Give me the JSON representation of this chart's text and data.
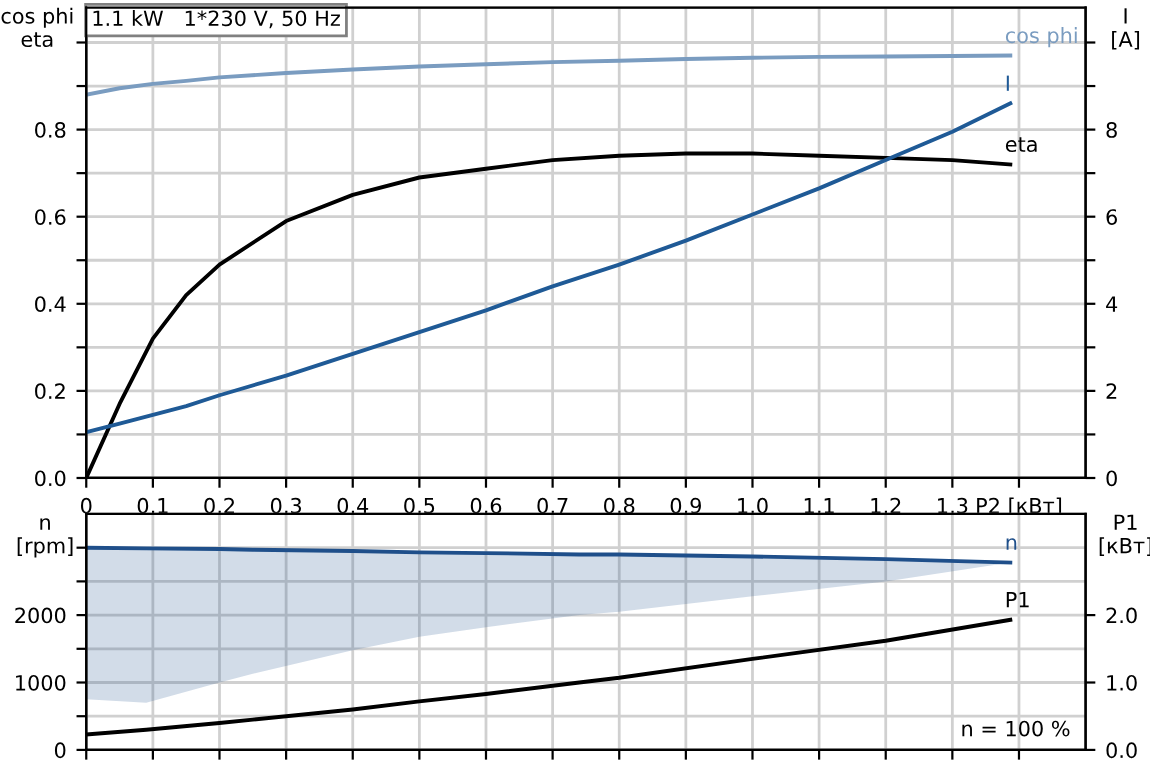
{
  "chart_data": [
    {
      "type": "line",
      "title": "1.1 kW   1*230 V, 50 Hz",
      "ylabel": "cos phi\neta",
      "y2label": "I\n[A]",
      "x": [
        0,
        0.05,
        0.1,
        0.15,
        0.2,
        0.3,
        0.4,
        0.5,
        0.6,
        0.7,
        0.8,
        0.9,
        1.0,
        1.1,
        1.2,
        1.3,
        1.387
      ],
      "series": [
        {
          "name": "cos phi",
          "color": "#7a9cc0",
          "values": [
            0.88,
            0.895,
            0.905,
            0.912,
            0.92,
            0.93,
            0.938,
            0.945,
            0.95,
            0.955,
            0.958,
            0.962,
            0.965,
            0.967,
            0.968,
            0.969,
            0.97
          ]
        },
        {
          "name": "eta",
          "color": "#000000",
          "values": [
            0,
            0.17,
            0.32,
            0.42,
            0.49,
            0.59,
            0.65,
            0.69,
            0.71,
            0.73,
            0.74,
            0.745,
            0.745,
            0.74,
            0.735,
            0.73,
            0.72
          ]
        },
        {
          "name": "I",
          "color": "#1f5a96",
          "axis": "y2",
          "values": [
            1.05,
            1.25,
            1.45,
            1.65,
            1.9,
            2.35,
            2.85,
            3.35,
            3.85,
            4.4,
            4.9,
            5.45,
            6.05,
            6.65,
            7.3,
            7.95,
            8.6
          ]
        }
      ],
      "xlim": [
        0,
        1.5
      ],
      "xticks": [
        {
          "value": 0,
          "label": "0"
        },
        {
          "value": 0.1,
          "label": "0,1"
        },
        {
          "value": 0.2,
          "label": "0,2"
        },
        {
          "value": 0.3,
          "label": "0,3"
        },
        {
          "value": 0.4,
          "label": "0,4"
        },
        {
          "value": 0.5,
          "label": "0,5"
        },
        {
          "value": 0.6,
          "label": "0,6"
        },
        {
          "value": 0.7,
          "label": "0,7"
        },
        {
          "value": 0.8,
          "label": "0,8"
        },
        {
          "value": 0.9,
          "label": "0,9"
        },
        {
          "value": 1.0,
          "label": "1,0"
        },
        {
          "value": 1.1,
          "label": "1,1"
        },
        {
          "value": 1.2,
          "label": "1,2"
        },
        {
          "value": 1.3,
          "label": "1,3"
        },
        {
          "value": 1.4,
          "label": "P2 [кВт]"
        }
      ],
      "ylim": [
        0,
        1.08
      ],
      "yticks": [
        {
          "value": 0,
          "label": "0.0"
        },
        {
          "value": 0.1,
          "label": null
        },
        0.2,
        {
          "value": 0.3,
          "label": null
        },
        0.4,
        {
          "value": 0.5,
          "label": null
        },
        0.6,
        {
          "value": 0.7,
          "label": null
        },
        0.8,
        {
          "value": 0.9,
          "label": null
        },
        {
          "value": 1.0,
          "label": null
        }
      ],
      "y2lim": [
        0,
        10.8
      ],
      "y2ticks": [
        0,
        {
          "value": 1,
          "label": null
        },
        2,
        {
          "value": 3,
          "label": null
        },
        4,
        {
          "value": 5,
          "label": null
        },
        6,
        {
          "value": 7,
          "label": null
        },
        8,
        {
          "value": 9,
          "label": null
        },
        {
          "value": 10,
          "label": null
        }
      ],
      "grid": true
    },
    {
      "type": "line",
      "ylabel": "n\n[rpm]",
      "y2label": "P1\n[кВт]",
      "tick_labels": "y",
      "x": [
        0,
        0.09,
        0.2,
        0.25,
        0.4,
        0.5,
        0.6,
        0.74,
        0.8,
        1.0,
        1.2,
        1.387
      ],
      "series": [
        {
          "name": "n",
          "color": "#1f4f8a",
          "values": [
            3000,
            2990,
            2980,
            2970,
            2950,
            2930,
            2920,
            2900,
            2900,
            2870,
            2830,
            2780
          ],
          "lower": [
            750,
            700,
            1000,
            1130,
            1480,
            1680,
            1820,
            2000,
            2050,
            2280,
            2500,
            2780
          ],
          "upper": [
            3000,
            2990,
            2980,
            2970,
            2950,
            2930,
            2920,
            2900,
            2900,
            2870,
            2830,
            2780
          ]
        },
        {
          "name": "P1",
          "color": "#000000",
          "axis": "y2",
          "values": [
            0.23,
            0.3,
            0.4,
            0.45,
            0.6,
            0.72,
            0.83,
            1.0,
            1.07,
            1.35,
            1.62,
            1.93
          ]
        }
      ],
      "xlim": [
        0,
        1.5
      ],
      "xticks": [
        0,
        0.1,
        0.2,
        0.3,
        0.4,
        0.5,
        0.6,
        0.7,
        0.8,
        0.9,
        1.0,
        1.1,
        1.2,
        1.3,
        1.4
      ],
      "ylim": [
        0,
        3500
      ],
      "yticks": [
        0,
        {
          "value": 500,
          "label": null
        },
        1000,
        {
          "value": 1500,
          "label": null
        },
        2000,
        {
          "value": 2500,
          "label": null
        },
        {
          "value": 3000,
          "label": null
        }
      ],
      "y2lim": [
        0,
        3.5
      ],
      "y2ticks": [
        {
          "value": 0,
          "label": "0.0"
        },
        {
          "value": 1,
          "label": "1.0"
        },
        {
          "value": 2,
          "label": "2.0"
        }
      ],
      "grid": true,
      "annotations": [
        "n = 100 %"
      ]
    }
  ]
}
